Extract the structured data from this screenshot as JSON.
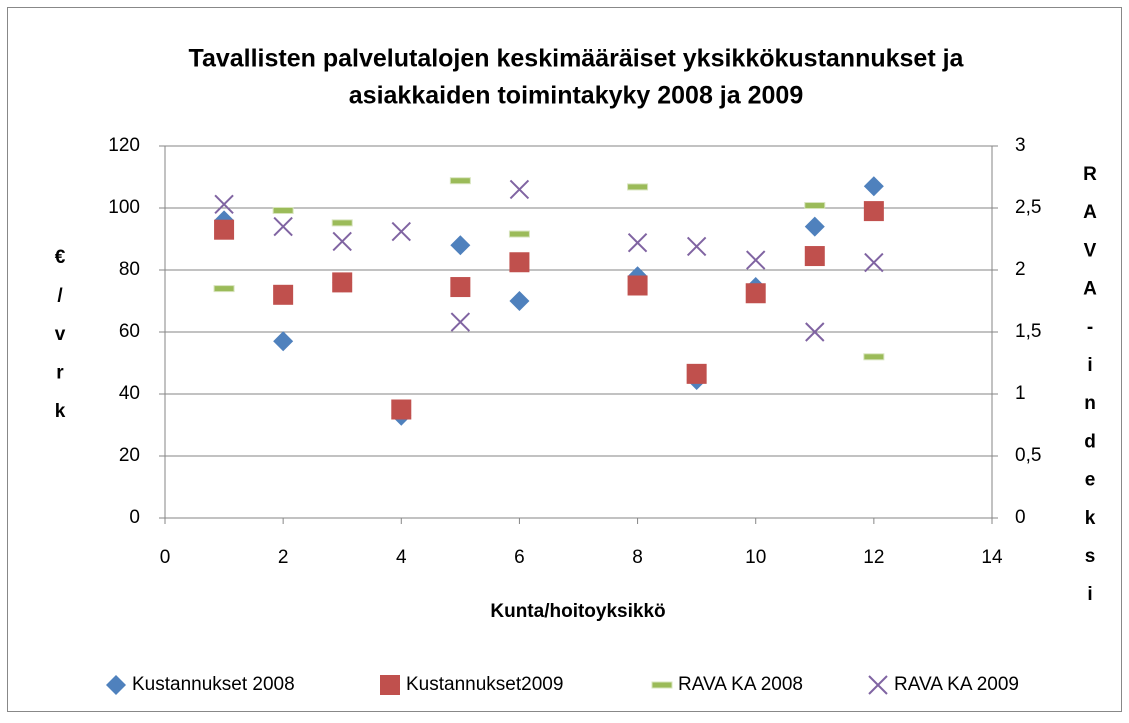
{
  "chart_data": {
    "type": "scatter",
    "title": [
      "Tavallisten palvelutalojen keskimääräiset yksikkökustannukset ja",
      "asiakkaiden toimintakyky 2008 ja 2009"
    ],
    "x_label": "Kunta/hoitoyksikkö",
    "y_label": "€/vrk",
    "y2_label": "RAVA-indeksi",
    "x": [
      1,
      2,
      3,
      4,
      5,
      6,
      8,
      9,
      10,
      11,
      12
    ],
    "series": [
      {
        "name": "Kustannukset 2008",
        "color": "#4f81bd",
        "marker": "diamond",
        "values": [
          96,
          57,
          76,
          33,
          88,
          70,
          78,
          44.5,
          74.5,
          94,
          107
        ]
      },
      {
        "name": "Kustannukset2009",
        "color": "#c0504d",
        "marker": "square",
        "values": [
          93,
          72,
          76,
          35,
          74.5,
          82.5,
          75,
          46.5,
          72.5,
          84.5,
          99
        ]
      },
      {
        "name": "RAVA KA 2008",
        "color": "#9bbb59",
        "marker": "dash",
        "axis": "y2",
        "values": [
          1.85,
          2.48,
          2.38,
          null,
          2.72,
          2.29,
          2.67,
          null,
          null,
          2.52,
          1.3
        ]
      },
      {
        "name": "RAVA KA 2009",
        "color": "#8064a2",
        "marker": "x",
        "axis": "y2",
        "values": [
          2.53,
          2.35,
          2.23,
          2.31,
          1.58,
          2.65,
          2.22,
          2.19,
          2.08,
          1.5,
          2.06
        ]
      }
    ],
    "xlim": [
      0,
      14
    ],
    "xticks": [
      0,
      2,
      4,
      6,
      8,
      10,
      12,
      14
    ],
    "ylim": [
      0,
      120
    ],
    "yticks": [
      0,
      20,
      40,
      60,
      80,
      100,
      120
    ],
    "y2lim": [
      0,
      3
    ],
    "y2ticks": [
      0,
      {
        "value": 0.5,
        "label": "0,5"
      },
      1,
      {
        "value": 1.5,
        "label": "1,5"
      },
      2,
      {
        "value": 2.5,
        "label": "2,5"
      },
      3
    ],
    "grid": true,
    "legend": "bottom"
  }
}
